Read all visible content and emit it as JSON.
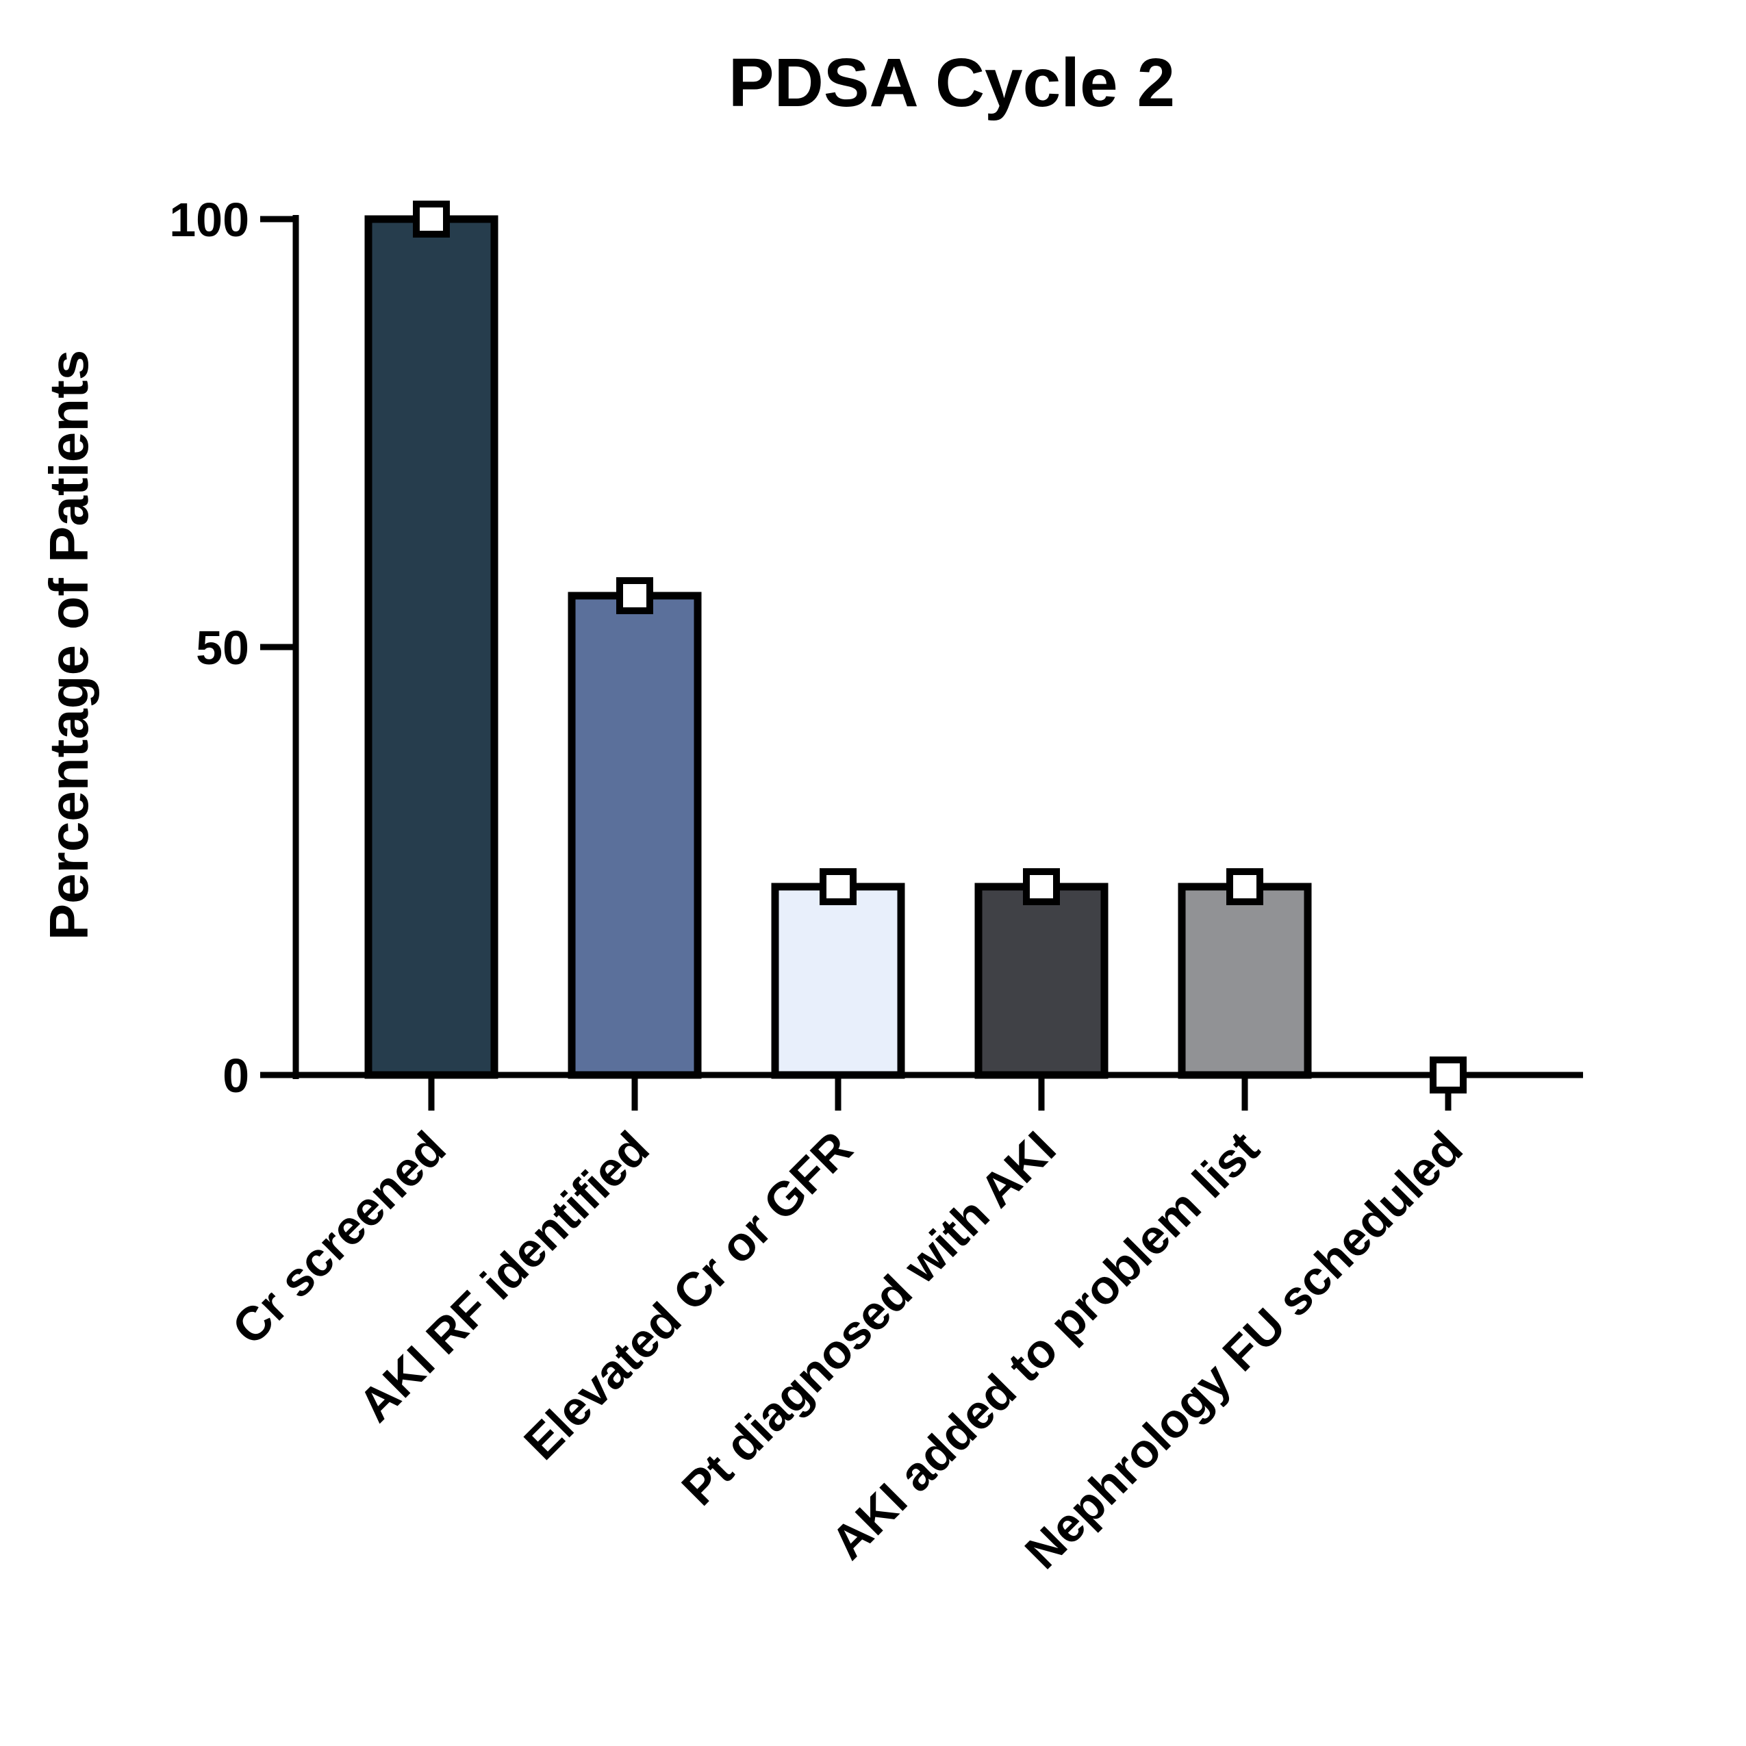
{
  "chart_data": {
    "type": "bar",
    "title": "PDSA Cycle 2",
    "xlabel": "",
    "ylabel": "Percentage of Patients",
    "ylim": [
      0,
      100
    ],
    "yticks": [
      0,
      50,
      100
    ],
    "categories": [
      "Cr screened",
      "AKI RF identified",
      "Elevated Cr or GFR",
      "Pt diagnosed with AKI",
      "AKI added to problem list",
      "Nephrology FU scheduled"
    ],
    "values": [
      100,
      56,
      22,
      22,
      22,
      0
    ],
    "bar_colors": [
      "#263d4d",
      "#5b709b",
      "#e8effb",
      "#404146",
      "#919295",
      "#ffffff"
    ],
    "point_marker": "open-square",
    "grid": false,
    "legend": "none"
  }
}
